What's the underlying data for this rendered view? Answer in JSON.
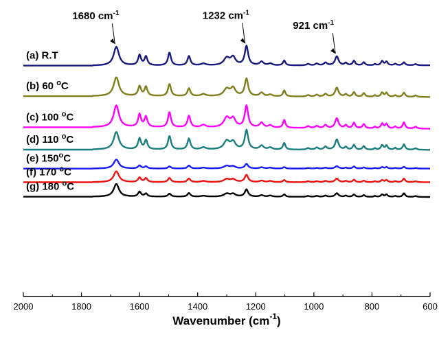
{
  "chart_data": {
    "type": "line",
    "title": "",
    "xlabel": "Wavenumber (cm",
    "xlabel_sup": "-1",
    "xlabel_close": ")",
    "ylabel": "",
    "xlim": [
      2000,
      600
    ],
    "x_reversed": true,
    "xticks": [
      {
        "label": "2000",
        "value": 2000
      },
      {
        "label": "1800",
        "value": 1800
      },
      {
        "label": "1600",
        "value": 1600
      },
      {
        "label": "1400",
        "value": 1400
      },
      {
        "label": "1200",
        "value": 1200
      },
      {
        "label": "1000",
        "value": 1000
      },
      {
        "label": "800",
        "value": 800
      },
      {
        "label": "600",
        "value": 600
      }
    ],
    "grid": false,
    "legend": "none",
    "peaks": [
      {
        "pos": 1680,
        "w": 11,
        "label": "1680 cm",
        "sup": "-1"
      },
      {
        "pos": 1600,
        "w": 6
      },
      {
        "pos": 1578,
        "w": 6
      },
      {
        "pos": 1497,
        "w": 6
      },
      {
        "pos": 1430,
        "w": 6
      },
      {
        "pos": 1380,
        "w": 10
      },
      {
        "pos": 1300,
        "w": 12
      },
      {
        "pos": 1278,
        "w": 10
      },
      {
        "pos": 1232,
        "w": 7,
        "label": "1232 cm",
        "sup": "-1"
      },
      {
        "pos": 1180,
        "w": 8
      },
      {
        "pos": 1150,
        "w": 8
      },
      {
        "pos": 1102,
        "w": 5
      },
      {
        "pos": 1020,
        "w": 6
      },
      {
        "pos": 990,
        "w": 6
      },
      {
        "pos": 960,
        "w": 6
      },
      {
        "pos": 921,
        "w": 7,
        "label": "921 cm",
        "sup": "-1"
      },
      {
        "pos": 890,
        "w": 5
      },
      {
        "pos": 862,
        "w": 5
      },
      {
        "pos": 828,
        "w": 5
      },
      {
        "pos": 790,
        "w": 4
      },
      {
        "pos": 765,
        "w": 5
      },
      {
        "pos": 750,
        "w": 5
      },
      {
        "pos": 720,
        "w": 5
      },
      {
        "pos": 690,
        "w": 5
      },
      {
        "pos": 650,
        "w": 6
      }
    ],
    "series": [
      {
        "name": "(a) R.T",
        "sup": "",
        "suffix": "",
        "color": "#1a1a7e",
        "baseline": 0.81,
        "amps": [
          0.62,
          0.34,
          0.29,
          0.43,
          0.31,
          0.06,
          0.24,
          0.26,
          0.64,
          0.12,
          0.06,
          0.16,
          0.05,
          0.06,
          0.09,
          0.3,
          0.08,
          0.15,
          0.1,
          0.04,
          0.14,
          0.12,
          0.05,
          0.1,
          0.04
        ],
        "tail_end": 0.8
      },
      {
        "name": "(b) 60 ",
        "sup": "o",
        "suffix": "C",
        "color": "#7e7e1a",
        "baseline": 1.82,
        "amps": [
          0.62,
          0.32,
          0.3,
          0.4,
          0.26,
          0.07,
          0.24,
          0.26,
          0.58,
          0.12,
          0.06,
          0.2,
          0.05,
          0.06,
          0.09,
          0.3,
          0.08,
          0.15,
          0.12,
          0.05,
          0.14,
          0.13,
          0.05,
          0.14,
          0.05
        ],
        "tail_end": 1.85
      },
      {
        "name": "(c) 100 ",
        "sup": "o",
        "suffix": "C",
        "color": "#ff00ff",
        "baseline": 2.85,
        "amps": [
          0.72,
          0.42,
          0.34,
          0.5,
          0.38,
          0.08,
          0.32,
          0.28,
          0.72,
          0.16,
          0.08,
          0.26,
          0.06,
          0.07,
          0.1,
          0.33,
          0.1,
          0.18,
          0.14,
          0.05,
          0.16,
          0.15,
          0.06,
          0.2,
          0.06
        ],
        "tail_end": 2.9
      },
      {
        "name": "(d) 110 ",
        "sup": "o",
        "suffix": "C",
        "color": "#1a7e7e",
        "baseline": 3.59,
        "amps": [
          0.58,
          0.36,
          0.3,
          0.45,
          0.36,
          0.07,
          0.28,
          0.24,
          0.64,
          0.13,
          0.07,
          0.22,
          0.05,
          0.07,
          0.1,
          0.34,
          0.09,
          0.16,
          0.12,
          0.05,
          0.15,
          0.14,
          0.06,
          0.18,
          0.05
        ],
        "tail_end": 3.6
      },
      {
        "name": "(e) 150",
        "sup": "o",
        "suffix": "C",
        "color": "#1a1aff",
        "baseline": 4.22,
        "amps": [
          0.3,
          0.1,
          0.07,
          0.07,
          0.1,
          0.03,
          0.09,
          0.07,
          0.15,
          0.04,
          0.03,
          0.05,
          0.02,
          0.02,
          0.03,
          0.08,
          0.03,
          0.07,
          0.04,
          0.02,
          0.05,
          0.05,
          0.02,
          0.06,
          0.02
        ],
        "tail_end": 4.22
      },
      {
        "name": "(f) 170 ",
        "sup": "o",
        "suffix": "C",
        "color": "#ee1111",
        "baseline": 4.67,
        "amps": [
          0.36,
          0.15,
          0.13,
          0.14,
          0.12,
          0.04,
          0.1,
          0.09,
          0.24,
          0.05,
          0.04,
          0.07,
          0.03,
          0.03,
          0.04,
          0.12,
          0.04,
          0.08,
          0.05,
          0.03,
          0.07,
          0.07,
          0.03,
          0.12,
          0.03
        ],
        "tail_end": 4.67
      },
      {
        "name": "(g) 180 ",
        "sup": "o",
        "suffix": "C",
        "color": "#000000",
        "baseline": 5.15,
        "amps": [
          0.42,
          0.16,
          0.1,
          0.1,
          0.12,
          0.03,
          0.1,
          0.09,
          0.24,
          0.05,
          0.04,
          0.08,
          0.03,
          0.03,
          0.04,
          0.12,
          0.04,
          0.08,
          0.06,
          0.03,
          0.08,
          0.08,
          0.03,
          0.12,
          0.03
        ],
        "tail_end": 5.16
      }
    ]
  }
}
